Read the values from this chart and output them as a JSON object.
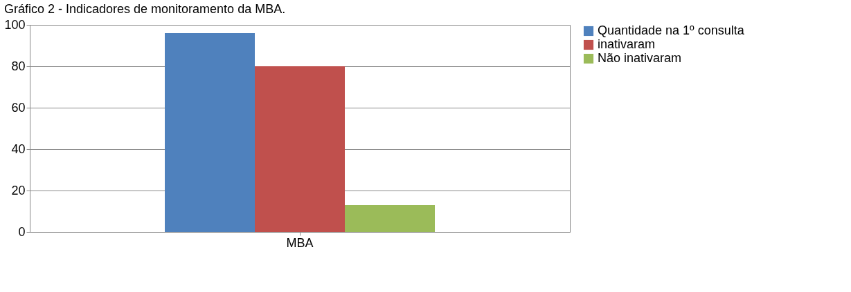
{
  "chart_data": {
    "type": "bar",
    "title": "Gráfico 2 - Indicadores de monitoramento da MBA.",
    "categories": [
      "MBA"
    ],
    "series": [
      {
        "name": "Quantidade na 1º consulta",
        "color": "#4f81bd",
        "values": [
          96
        ]
      },
      {
        "name": "inativaram",
        "color": "#c0504d",
        "values": [
          80
        ]
      },
      {
        "name": "Não inativaram",
        "color": "#9bbb59",
        "values": [
          13
        ]
      }
    ],
    "ylim": [
      0,
      100
    ],
    "yticks": [
      0,
      20,
      40,
      60,
      80,
      100
    ],
    "grid": "y",
    "legend": "right"
  }
}
